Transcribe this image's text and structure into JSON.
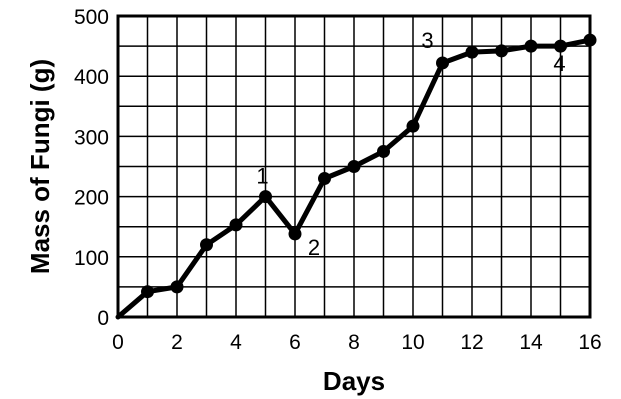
{
  "chart_data": {
    "type": "line",
    "title": "",
    "xlabel": "Days",
    "ylabel": "Mass of Fungi (g)",
    "xlim": [
      0,
      16
    ],
    "ylim": [
      0,
      500
    ],
    "x_ticks": [
      0,
      2,
      4,
      6,
      8,
      10,
      12,
      14,
      16
    ],
    "y_ticks": [
      0,
      100,
      200,
      300,
      400,
      500
    ],
    "grid": true,
    "legend": "none",
    "line_color": "#000000",
    "series": [
      {
        "x": [
          0,
          1,
          2,
          3,
          4,
          5,
          6,
          7,
          8,
          9,
          10,
          11,
          12,
          13,
          14,
          15,
          16
        ],
        "y": [
          0,
          42,
          50,
          120,
          153,
          200,
          138,
          230,
          250,
          275,
          317,
          422,
          440,
          442,
          450,
          450,
          460
        ]
      }
    ],
    "annotations": [
      {
        "text": "1",
        "x": 5,
        "y": 200
      },
      {
        "text": "2",
        "x": 6,
        "y": 138
      },
      {
        "text": "3",
        "x": 11,
        "y": 422
      },
      {
        "text": "4",
        "x": 15,
        "y": 450
      }
    ]
  }
}
